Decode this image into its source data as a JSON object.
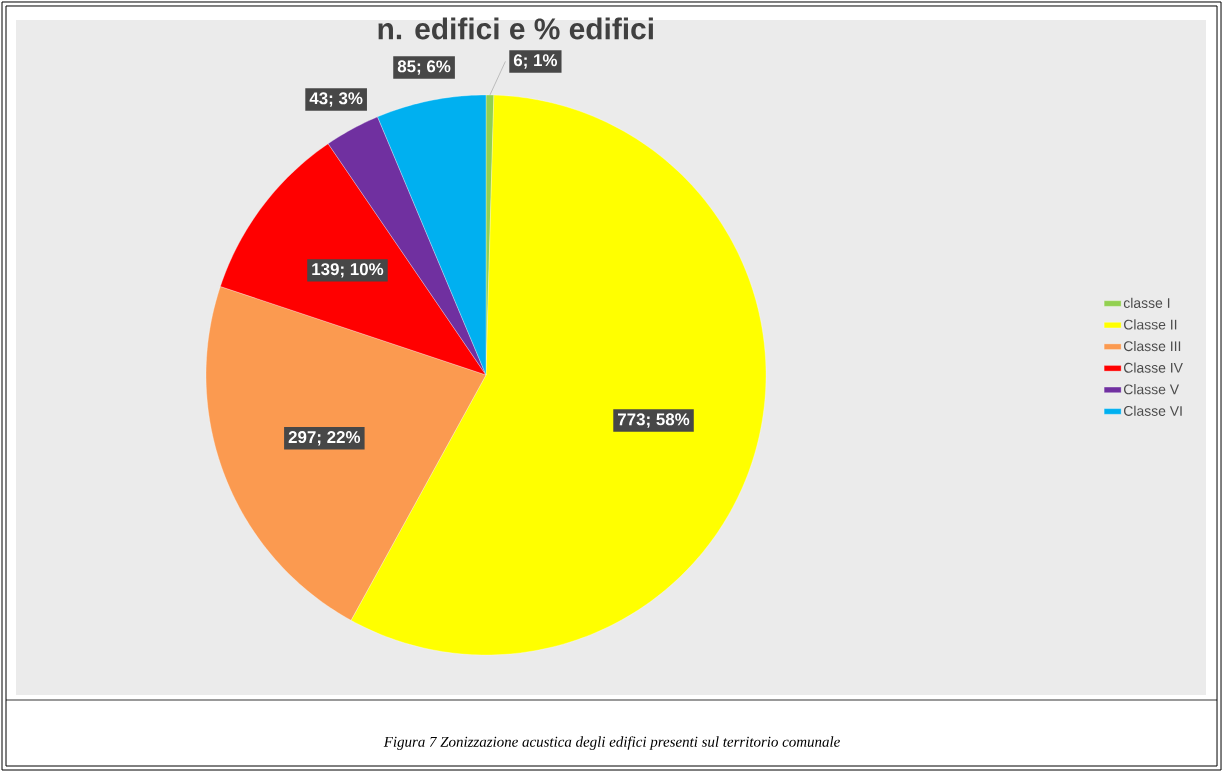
{
  "chart_data": {
    "type": "pie",
    "title": "n. edifici e % edifici",
    "categories": [
      "classe I",
      "Classe II",
      "Classe III",
      "Classe IV",
      "Classe V",
      "Classe VI"
    ],
    "values": [
      6,
      773,
      297,
      139,
      43,
      85
    ],
    "colors": [
      "#92d050",
      "#ffff00",
      "#fb9a50",
      "#ff0000",
      "#7030a0",
      "#00b0f0"
    ],
    "value_labels": [
      "6; 1%",
      "773; 58%",
      "297; 22%",
      "139; 10%",
      "43; 3%",
      "85; 6%"
    ],
    "legend": "right",
    "annotations": [
      "Figura 7 Zonizzazione acustica degli edifici presenti sul territorio comunale"
    ]
  }
}
